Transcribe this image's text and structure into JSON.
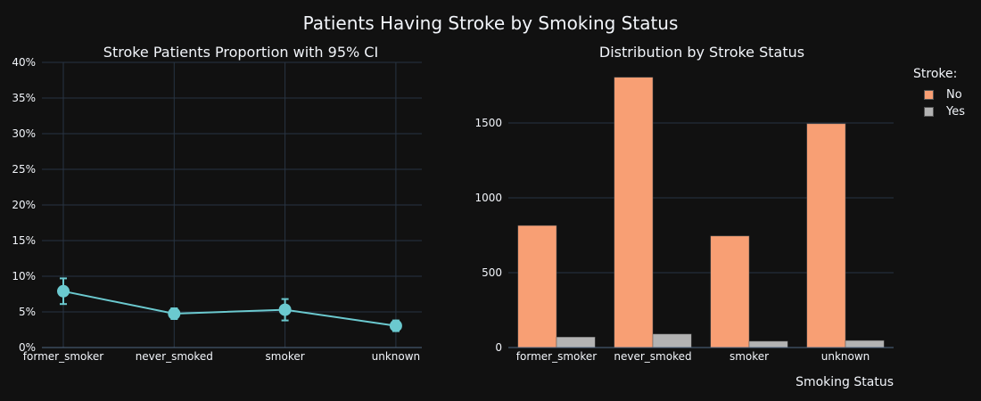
{
  "title": "Patients Having Stroke by Smoking Status",
  "chart_data": [
    {
      "type": "line",
      "title": "Stroke Patients Proportion with 95% CI",
      "categories": [
        "former_smoker",
        "never_smoked",
        "smoker",
        "unknown"
      ],
      "values": [
        7.9,
        4.75,
        5.3,
        3.05
      ],
      "ci_low": [
        6.1,
        4.0,
        3.8,
        2.3
      ],
      "ci_high": [
        9.7,
        5.5,
        6.8,
        3.8
      ],
      "ylim": [
        0,
        40
      ],
      "yticks": [
        0,
        5,
        10,
        15,
        20,
        25,
        30,
        35,
        40
      ],
      "ytick_suffix": "%",
      "xlabel": "",
      "ylabel": "",
      "color": "#6bc9cf",
      "grid": true
    },
    {
      "type": "bar",
      "title": "Distribution by Stroke Status",
      "categories": [
        "former_smoker",
        "never_smoked",
        "smoker",
        "unknown"
      ],
      "series": [
        {
          "name": "No",
          "values": [
            815,
            1805,
            745,
            1495
          ],
          "color": "#f89f74"
        },
        {
          "name": "Yes",
          "values": [
            70,
            90,
            42,
            47
          ],
          "color": "#b3b3b3"
        }
      ],
      "ylim": [
        0,
        1905
      ],
      "yticks": [
        0,
        500,
        1000,
        1500
      ],
      "xlabel": "Smoking Status",
      "ylabel": "",
      "legend_title": "Stroke:",
      "legend_position": "top-right",
      "grid": true
    }
  ]
}
